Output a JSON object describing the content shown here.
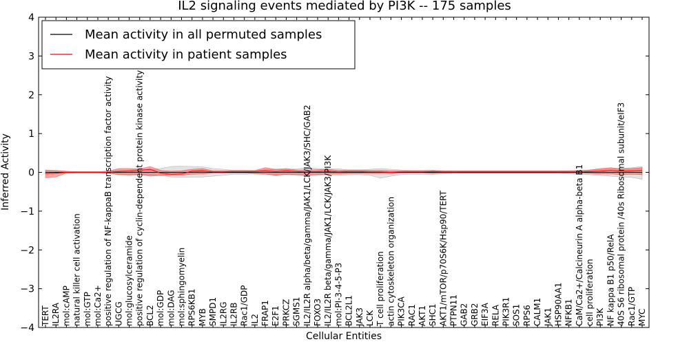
{
  "chart_data": {
    "type": "line",
    "title": "IL2 signaling events mediated by PI3K -- 175 samples",
    "xlabel": "Cellular Entities",
    "ylabel": "Inferred Activity",
    "ylim": [
      -4,
      4
    ],
    "yticks": [
      "−4",
      "−3",
      "−2",
      "−1",
      "0",
      "1",
      "2",
      "3",
      "4"
    ],
    "legend_position": "top-left",
    "grid": false,
    "categories": [
      "TERT",
      "IL2RA",
      "mol:cAMP",
      "natural killer cell activation",
      "mol:GTP",
      "mol:Ca2+",
      "positive regulation of NF-kappaB transcription factor activity",
      "UGCG",
      "mol:glucosylceramide",
      "positive regulation of cyclin-dependent protein kinase activity",
      "BCL2",
      "mol:GDP",
      "mol:DAG",
      "mol:sphingomyelin",
      "RPS6KB1",
      "MYB",
      "SMPD1",
      "IL2RG",
      "IL2RB",
      "Rac1/GDP",
      "IL2",
      "FRAP1",
      "E2F1",
      "PRKCZ",
      "SGMS1",
      "IL2/IL2R alpha/beta/gamma/JAK1/LCK/JAK3/SHC/GAB2",
      "FOXO3",
      "IL2/IL2R beta/gamma/JAK1/LCK/JAK3/PI3K",
      "mol:PI-3-4-5-P3",
      "BCL2L1",
      "JAK3",
      "LCK",
      "T cell proliferation",
      "actin cytoskeleton organization",
      "PIK3CA",
      "RAC1",
      "AKT1",
      "SHC1",
      "AKT1/mTOR/p70S6K/Hsp90/TERT",
      "PTPN11",
      "GAB2",
      "GRB2",
      "EIF3A",
      "RELA",
      "PIK3R1",
      "SOS1",
      "RPS6",
      "CALM1",
      "JAK1",
      "HSP90AA1",
      "NFKB1",
      "CaM/Ca2+/Calcineurin A alpha-beta B1",
      "cell proliferation",
      "PI3K",
      "NF kappa B1 p50/RelA",
      "40S S6 ribosomal protein /40s Ribosomal subunit/eIF3",
      "Rac1/GTP",
      "MYC"
    ],
    "series": [
      {
        "name": "Mean activity in all permuted samples",
        "color": "#000000",
        "values": [
          0,
          0,
          0,
          0,
          0,
          0,
          0,
          0,
          0,
          0,
          0,
          0,
          0,
          0,
          0,
          0,
          0,
          0,
          0,
          0,
          0,
          0,
          0,
          0,
          0,
          0,
          0,
          0,
          0,
          0,
          0,
          0,
          0,
          0,
          0,
          0,
          0,
          0,
          0,
          0,
          0,
          0,
          0,
          0,
          0,
          0,
          0,
          0,
          0,
          0,
          0,
          0,
          0,
          0,
          0,
          0,
          0,
          0
        ],
        "band_lower": [
          -0.03,
          -0.03,
          -0.02,
          -0.02,
          -0.02,
          -0.02,
          -0.03,
          -0.05,
          -0.06,
          -0.08,
          -0.06,
          -0.07,
          -0.12,
          -0.13,
          -0.12,
          -0.12,
          -0.1,
          -0.08,
          -0.05,
          -0.05,
          -0.04,
          -0.06,
          -0.07,
          -0.06,
          -0.08,
          -0.1,
          -0.08,
          -0.08,
          -0.08,
          -0.06,
          -0.06,
          -0.08,
          -0.15,
          -0.1,
          -0.06,
          -0.05,
          -0.05,
          -0.05,
          -0.04,
          -0.03,
          -0.03,
          -0.03,
          -0.03,
          -0.03,
          -0.03,
          -0.03,
          -0.03,
          -0.03,
          -0.03,
          -0.03,
          -0.04,
          -0.05,
          -0.06,
          -0.08,
          -0.1,
          -0.12,
          -0.13,
          -0.18
        ],
        "band_upper": [
          0.03,
          0.03,
          0.02,
          0.02,
          0.02,
          0.02,
          0.03,
          0.05,
          0.06,
          0.08,
          0.06,
          0.1,
          0.15,
          0.16,
          0.15,
          0.14,
          0.1,
          0.08,
          0.05,
          0.05,
          0.04,
          0.07,
          0.08,
          0.07,
          0.09,
          0.12,
          0.1,
          0.09,
          0.09,
          0.06,
          0.06,
          0.08,
          0.1,
          0.08,
          0.06,
          0.05,
          0.05,
          0.05,
          0.04,
          0.03,
          0.03,
          0.03,
          0.03,
          0.03,
          0.03,
          0.03,
          0.03,
          0.03,
          0.03,
          0.03,
          0.04,
          0.05,
          0.06,
          0.07,
          0.09,
          0.1,
          0.12,
          0.15
        ]
      },
      {
        "name": "Mean activity in patient samples",
        "color": "#ff0000",
        "values": [
          -0.03,
          -0.02,
          0,
          0,
          0,
          0,
          0,
          0.02,
          0.03,
          0.05,
          0.08,
          -0.02,
          -0.05,
          -0.04,
          0.03,
          0.04,
          0.01,
          0.01,
          0.02,
          0.02,
          0.02,
          0.04,
          0.02,
          0.04,
          0.02,
          0.01,
          0.02,
          0.03,
          0.01,
          0.02,
          0.02,
          0.01,
          0.01,
          0.0,
          0.01,
          0.01,
          0.01,
          0.02,
          0.01,
          0.01,
          0.01,
          0.01,
          0.01,
          0.01,
          0.01,
          0.01,
          0.01,
          0.01,
          0.01,
          0.01,
          0.01,
          0.01,
          0.02,
          0.03,
          0.05,
          0.03,
          0.04,
          0.05
        ],
        "band_lower": [
          -0.14,
          -0.12,
          -0.02,
          -0.01,
          -0.01,
          -0.01,
          -0.02,
          -0.06,
          -0.07,
          -0.05,
          -0.1,
          -0.08,
          -0.07,
          -0.07,
          -0.05,
          -0.04,
          -0.02,
          -0.02,
          -0.02,
          -0.02,
          -0.03,
          -0.04,
          -0.08,
          -0.05,
          -0.06,
          -0.07,
          -0.06,
          -0.05,
          -0.04,
          -0.03,
          -0.03,
          -0.03,
          -0.03,
          -0.03,
          -0.02,
          -0.02,
          -0.02,
          -0.03,
          -0.02,
          -0.02,
          -0.02,
          -0.02,
          -0.02,
          -0.02,
          -0.02,
          -0.02,
          -0.02,
          -0.02,
          -0.02,
          -0.02,
          -0.02,
          -0.02,
          -0.03,
          -0.04,
          -0.04,
          -0.06,
          -0.05,
          -0.06
        ],
        "band_upper": [
          0.06,
          0.05,
          0.03,
          0.02,
          0.02,
          0.02,
          0.03,
          0.1,
          0.1,
          0.09,
          0.15,
          0.05,
          0.03,
          0.04,
          0.08,
          0.1,
          0.04,
          0.04,
          0.05,
          0.05,
          0.05,
          0.12,
          0.08,
          0.1,
          0.06,
          0.06,
          0.07,
          0.08,
          0.05,
          0.06,
          0.06,
          0.05,
          0.05,
          0.04,
          0.04,
          0.04,
          0.04,
          0.05,
          0.04,
          0.04,
          0.04,
          0.04,
          0.04,
          0.04,
          0.04,
          0.04,
          0.04,
          0.04,
          0.04,
          0.04,
          0.04,
          0.04,
          0.06,
          0.1,
          0.12,
          0.09,
          0.1,
          0.12
        ]
      }
    ]
  }
}
